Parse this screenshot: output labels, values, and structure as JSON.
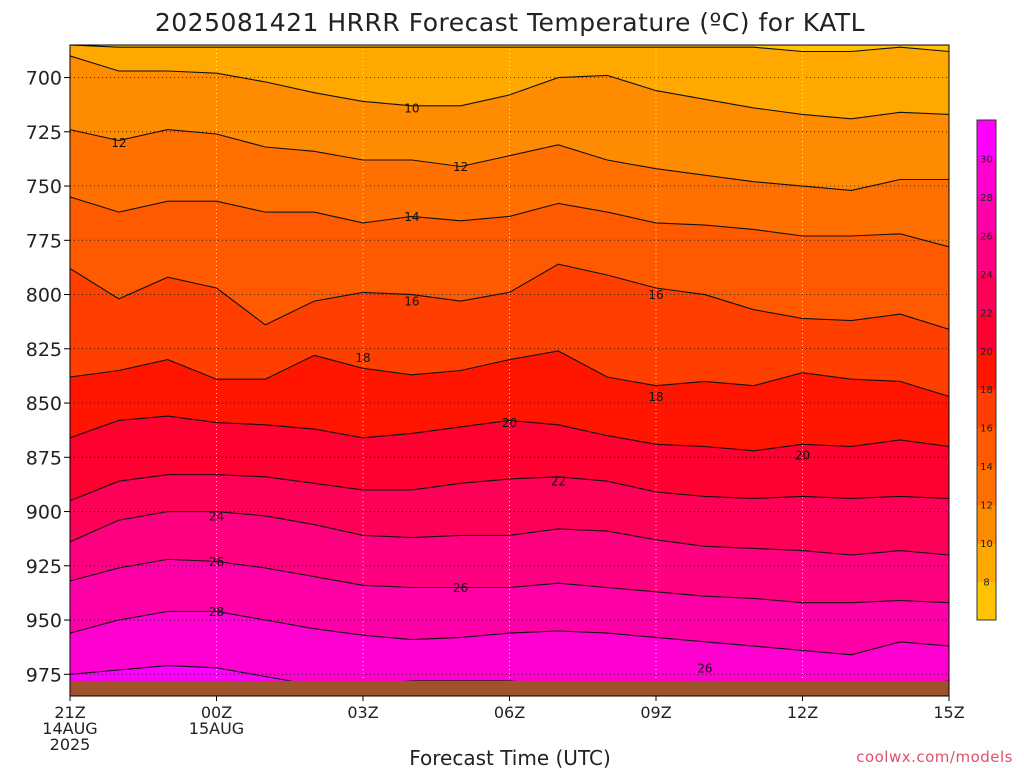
{
  "chart_data": {
    "type": "heatmap",
    "title": "2025081421 HRRR Forecast Temperature (ºC) for KATL",
    "xlabel": "Forecast Time (UTC)",
    "ylabel": "",
    "credit": "coolwx.com/models",
    "x_ticks": [
      {
        "hour": 0,
        "lines": [
          "21Z",
          "14AUG",
          "2025"
        ]
      },
      {
        "hour": 3,
        "lines": [
          "00Z",
          "15AUG"
        ]
      },
      {
        "hour": 6,
        "lines": [
          "03Z"
        ]
      },
      {
        "hour": 9,
        "lines": [
          "06Z"
        ]
      },
      {
        "hour": 12,
        "lines": [
          "09Z"
        ]
      },
      {
        "hour": 15,
        "lines": [
          "12Z"
        ]
      },
      {
        "hour": 18,
        "lines": [
          "15Z"
        ]
      }
    ],
    "xlim": [
      0,
      18
    ],
    "y_ticks": [
      700,
      725,
      750,
      775,
      800,
      825,
      850,
      875,
      900,
      925,
      950,
      975
    ],
    "ylim_hPa": [
      685,
      985
    ],
    "surface_pressure_hPa": 978,
    "grid": true,
    "color_levels": [
      8,
      10,
      12,
      14,
      16,
      18,
      20,
      22,
      24,
      26,
      28,
      30
    ],
    "colorbar_labels": [
      8,
      10,
      12,
      14,
      16,
      18,
      20,
      22,
      24,
      26,
      28,
      30
    ],
    "colorbar_colors": [
      "#ffc300",
      "#ffa800",
      "#ff8c00",
      "#ff7000",
      "#ff5a00",
      "#ff3f00",
      "#ff1500",
      "#ff0030",
      "#ff0058",
      "#ff0080",
      "#ff00a8",
      "#ff00d0",
      "#ff00ff"
    ],
    "ground_color": "#a0522d",
    "isotherms": [
      {
        "temp": 8,
        "hour": [
          0,
          1,
          2,
          3,
          4,
          5,
          6,
          7,
          8,
          9,
          10,
          11,
          12,
          13,
          14,
          15,
          16,
          17,
          18
        ],
        "pressure_hPa": [
          685,
          686,
          686,
          686,
          686,
          686,
          686,
          686,
          686,
          686,
          686,
          686,
          686,
          686,
          686,
          688,
          688,
          686,
          688
        ]
      },
      {
        "temp": 10,
        "hour": [
          0,
          1,
          2,
          3,
          4,
          5,
          6,
          7,
          8,
          9,
          10,
          11,
          12,
          13,
          14,
          15,
          16,
          17,
          18
        ],
        "pressure_hPa": [
          690,
          697,
          697,
          698,
          702,
          707,
          711,
          713,
          713,
          708,
          700,
          699,
          706,
          710,
          714,
          717,
          719,
          716,
          717
        ]
      },
      {
        "temp": 12,
        "hour": [
          0,
          1,
          2,
          3,
          4,
          5,
          6,
          7,
          8,
          9,
          10,
          11,
          12,
          13,
          14,
          15,
          16,
          17,
          18
        ],
        "pressure_hPa": [
          724,
          729,
          724,
          726,
          732,
          734,
          738,
          738,
          741,
          736,
          731,
          738,
          742,
          745,
          748,
          750,
          752,
          747,
          747
        ]
      },
      {
        "temp": 14,
        "hour": [
          0,
          1,
          2,
          3,
          4,
          5,
          6,
          7,
          8,
          9,
          10,
          11,
          12,
          13,
          14,
          15,
          16,
          17,
          18
        ],
        "pressure_hPa": [
          755,
          762,
          757,
          757,
          762,
          762,
          767,
          764,
          766,
          764,
          758,
          762,
          767,
          768,
          770,
          773,
          773,
          772,
          778
        ]
      },
      {
        "temp": 16,
        "hour": [
          0,
          1,
          2,
          3,
          4,
          5,
          6,
          7,
          8,
          9,
          10,
          11,
          12,
          13,
          14,
          15,
          16,
          17,
          18
        ],
        "pressure_hPa": [
          788,
          802,
          792,
          797,
          814,
          803,
          799,
          800,
          803,
          799,
          786,
          791,
          797,
          800,
          807,
          811,
          812,
          809,
          816
        ]
      },
      {
        "temp": 18,
        "hour": [
          0,
          1,
          2,
          3,
          4,
          5,
          6,
          7,
          8,
          9,
          10,
          11,
          12,
          13,
          14,
          15,
          16,
          17,
          18
        ],
        "pressure_hPa": [
          838,
          835,
          830,
          839,
          839,
          828,
          834,
          837,
          835,
          830,
          826,
          838,
          842,
          840,
          842,
          836,
          839,
          840,
          847
        ]
      },
      {
        "temp": 20,
        "hour": [
          0,
          1,
          2,
          3,
          4,
          5,
          6,
          7,
          8,
          9,
          10,
          11,
          12,
          13,
          14,
          15,
          16,
          17,
          18
        ],
        "pressure_hPa": [
          866,
          858,
          856,
          859,
          860,
          862,
          866,
          864,
          861,
          858,
          860,
          865,
          869,
          870,
          872,
          869,
          870,
          867,
          870
        ]
      },
      {
        "temp": 22,
        "hour": [
          0,
          1,
          2,
          3,
          4,
          5,
          6,
          7,
          8,
          9,
          10,
          11,
          12,
          13,
          14,
          15,
          16,
          17,
          18
        ],
        "pressure_hPa": [
          895,
          886,
          883,
          883,
          884,
          887,
          890,
          890,
          887,
          885,
          884,
          886,
          891,
          893,
          894,
          893,
          894,
          893,
          894
        ]
      },
      {
        "temp": 24,
        "hour": [
          0,
          1,
          2,
          3,
          4,
          5,
          6,
          7,
          8,
          9,
          10,
          11,
          12,
          13,
          14,
          15,
          16,
          17,
          18
        ],
        "pressure_hPa": [
          914,
          904,
          900,
          900,
          902,
          906,
          911,
          912,
          911,
          911,
          908,
          909,
          913,
          916,
          917,
          918,
          920,
          918,
          920
        ]
      },
      {
        "temp": 26,
        "hour": [
          0,
          1,
          2,
          3,
          4,
          5,
          6,
          7,
          8,
          9,
          10,
          11,
          12,
          13,
          14,
          15,
          16,
          17,
          18
        ],
        "pressure_hPa": [
          932,
          926,
          922,
          923,
          926,
          930,
          934,
          935,
          935,
          935,
          933,
          935,
          937,
          939,
          940,
          942,
          942,
          941,
          942
        ]
      },
      {
        "temp": 28,
        "hour": [
          0,
          1,
          2,
          3,
          4,
          5,
          6,
          7,
          8,
          9,
          10,
          11,
          12,
          13,
          14,
          15,
          16,
          17,
          18
        ],
        "pressure_hPa": [
          956,
          950,
          946,
          946,
          950,
          954,
          957,
          959,
          958,
          956,
          955,
          956,
          958,
          960,
          962,
          964,
          966,
          960,
          962
        ]
      },
      {
        "temp": 30,
        "hour": [
          0,
          1,
          2,
          3,
          4,
          5,
          6,
          7,
          8,
          9,
          10,
          11,
          12,
          13,
          14,
          15,
          16,
          17,
          18
        ],
        "pressure_hPa": [
          975,
          973,
          971,
          972,
          976,
          980,
          980,
          978,
          978,
          978,
          980,
          981,
          982,
          982,
          983,
          983,
          983,
          981,
          978
        ]
      }
    ],
    "contour_labels": [
      {
        "text": "10",
        "hour": 7.0,
        "pressure_hPa": 714
      },
      {
        "text": "12",
        "hour": 1.0,
        "pressure_hPa": 730
      },
      {
        "text": "12",
        "hour": 8.0,
        "pressure_hPa": 741
      },
      {
        "text": "14",
        "hour": 7.0,
        "pressure_hPa": 764
      },
      {
        "text": "16",
        "hour": 7.0,
        "pressure_hPa": 803
      },
      {
        "text": "16",
        "hour": 12.0,
        "pressure_hPa": 800
      },
      {
        "text": "18",
        "hour": 6.0,
        "pressure_hPa": 829
      },
      {
        "text": "18",
        "hour": 12.0,
        "pressure_hPa": 847
      },
      {
        "text": "20",
        "hour": 9.0,
        "pressure_hPa": 859
      },
      {
        "text": "20",
        "hour": 15.0,
        "pressure_hPa": 874
      },
      {
        "text": "22",
        "hour": 10.0,
        "pressure_hPa": 886
      },
      {
        "text": "24",
        "hour": 3.0,
        "pressure_hPa": 902
      },
      {
        "text": "26",
        "hour": 3.0,
        "pressure_hPa": 923
      },
      {
        "text": "26",
        "hour": 8.0,
        "pressure_hPa": 935
      },
      {
        "text": "26",
        "hour": 13.0,
        "pressure_hPa": 972
      },
      {
        "text": "28",
        "hour": 3.0,
        "pressure_hPa": 946
      }
    ]
  }
}
